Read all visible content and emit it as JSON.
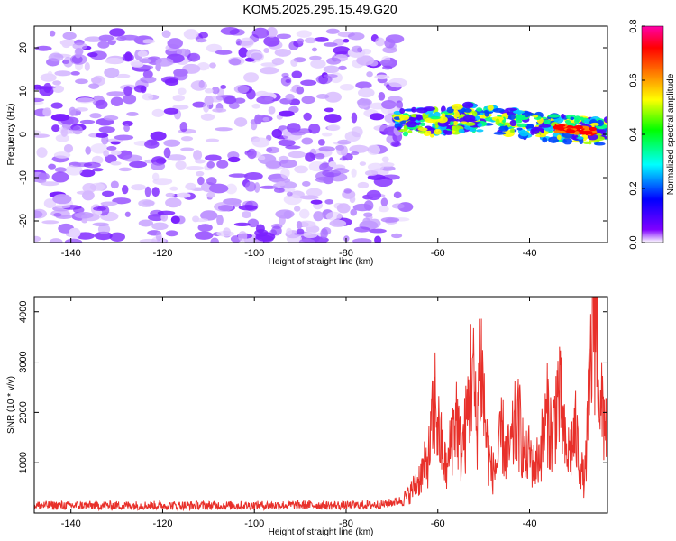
{
  "title": "KOM5.2025.295.15.49.G20",
  "chart_data": [
    {
      "type": "heatmap",
      "xlabel": "Height of straight line (km)",
      "ylabel": "Frequency (Hz)",
      "xlim": [
        -148,
        -23
      ],
      "ylim": [
        -25,
        25
      ],
      "xticks": [
        -140,
        -120,
        -100,
        -80,
        -60,
        -40
      ],
      "yticks": [
        -20,
        -10,
        0,
        10,
        20
      ],
      "colorbar": {
        "label": "Normalized spectral amplitude",
        "range": [
          0,
          0.8
        ],
        "ticks": [
          "0.0",
          "0.2",
          "0.4",
          "0.6",
          "0.8"
        ],
        "colors": [
          "#ffffff",
          "#7f00ff",
          "#0000ff",
          "#00ffff",
          "#00ff00",
          "#ffff00",
          "#ff7f00",
          "#ff0000",
          "#ff00aa"
        ]
      },
      "regions": [
        {
          "x_range": [
            -148,
            -67
          ],
          "y_range": [
            -25,
            24
          ],
          "amplitude": "low (purple noise)"
        },
        {
          "x_range": [
            -69,
            -23
          ],
          "centerline_freq": [
            [
              -69,
              3
            ],
            [
              -60,
              3
            ],
            [
              -52,
              4
            ],
            [
              -45,
              3
            ],
            [
              -40,
              2
            ],
            [
              -35,
              1.5
            ],
            [
              -30,
              1
            ],
            [
              -23,
              0.5
            ]
          ],
          "peak_amplitude": 0.8,
          "peak_x": -30
        }
      ],
      "grid": false
    },
    {
      "type": "line",
      "xlabel": "Height of straight line (km)",
      "ylabel": "SNR (10 * v/v)",
      "xlim": [
        -148,
        -23
      ],
      "ylim": [
        0,
        4300
      ],
      "xticks": [
        -140,
        -120,
        -100,
        -80,
        -60,
        -40
      ],
      "yticks": [
        1000,
        2000,
        3000,
        4000
      ],
      "color": "#e8302a",
      "grid": false,
      "series": [
        {
          "x": [
            -148,
            -140,
            -130,
            -120,
            -110,
            -100,
            -90,
            -80,
            -72,
            -68,
            -66,
            -64,
            -62,
            -60.5,
            -60,
            -59,
            -58,
            -57,
            -56,
            -55,
            -54,
            -53,
            -52.5,
            -52,
            -51.5,
            -51,
            -50.5,
            -50,
            -49,
            -48,
            -47,
            -46,
            -45,
            -44,
            -43,
            -42,
            -41,
            -40,
            -39,
            -38,
            -37,
            -36,
            -35,
            -34,
            -33.5,
            -33,
            -32,
            -31,
            -30,
            -29,
            -28,
            -27,
            -26,
            -25.5,
            -25,
            -24.5,
            -24,
            -23
          ],
          "y": [
            150,
            150,
            150,
            150,
            150,
            150,
            160,
            150,
            170,
            250,
            400,
            700,
            1100,
            2300,
            1700,
            1200,
            800,
            1500,
            2000,
            1200,
            1600,
            2400,
            3100,
            2200,
            1600,
            2900,
            3000,
            2200,
            1100,
            800,
            1000,
            1600,
            1100,
            1300,
            1800,
            1700,
            1000,
            1200,
            900,
            1100,
            1500,
            2000,
            1400,
            2400,
            2200,
            2000,
            1100,
            1300,
            1600,
            1000,
            600,
            2200,
            4200,
            4000,
            3200,
            1800,
            2100,
            1700
          ]
        }
      ]
    }
  ]
}
